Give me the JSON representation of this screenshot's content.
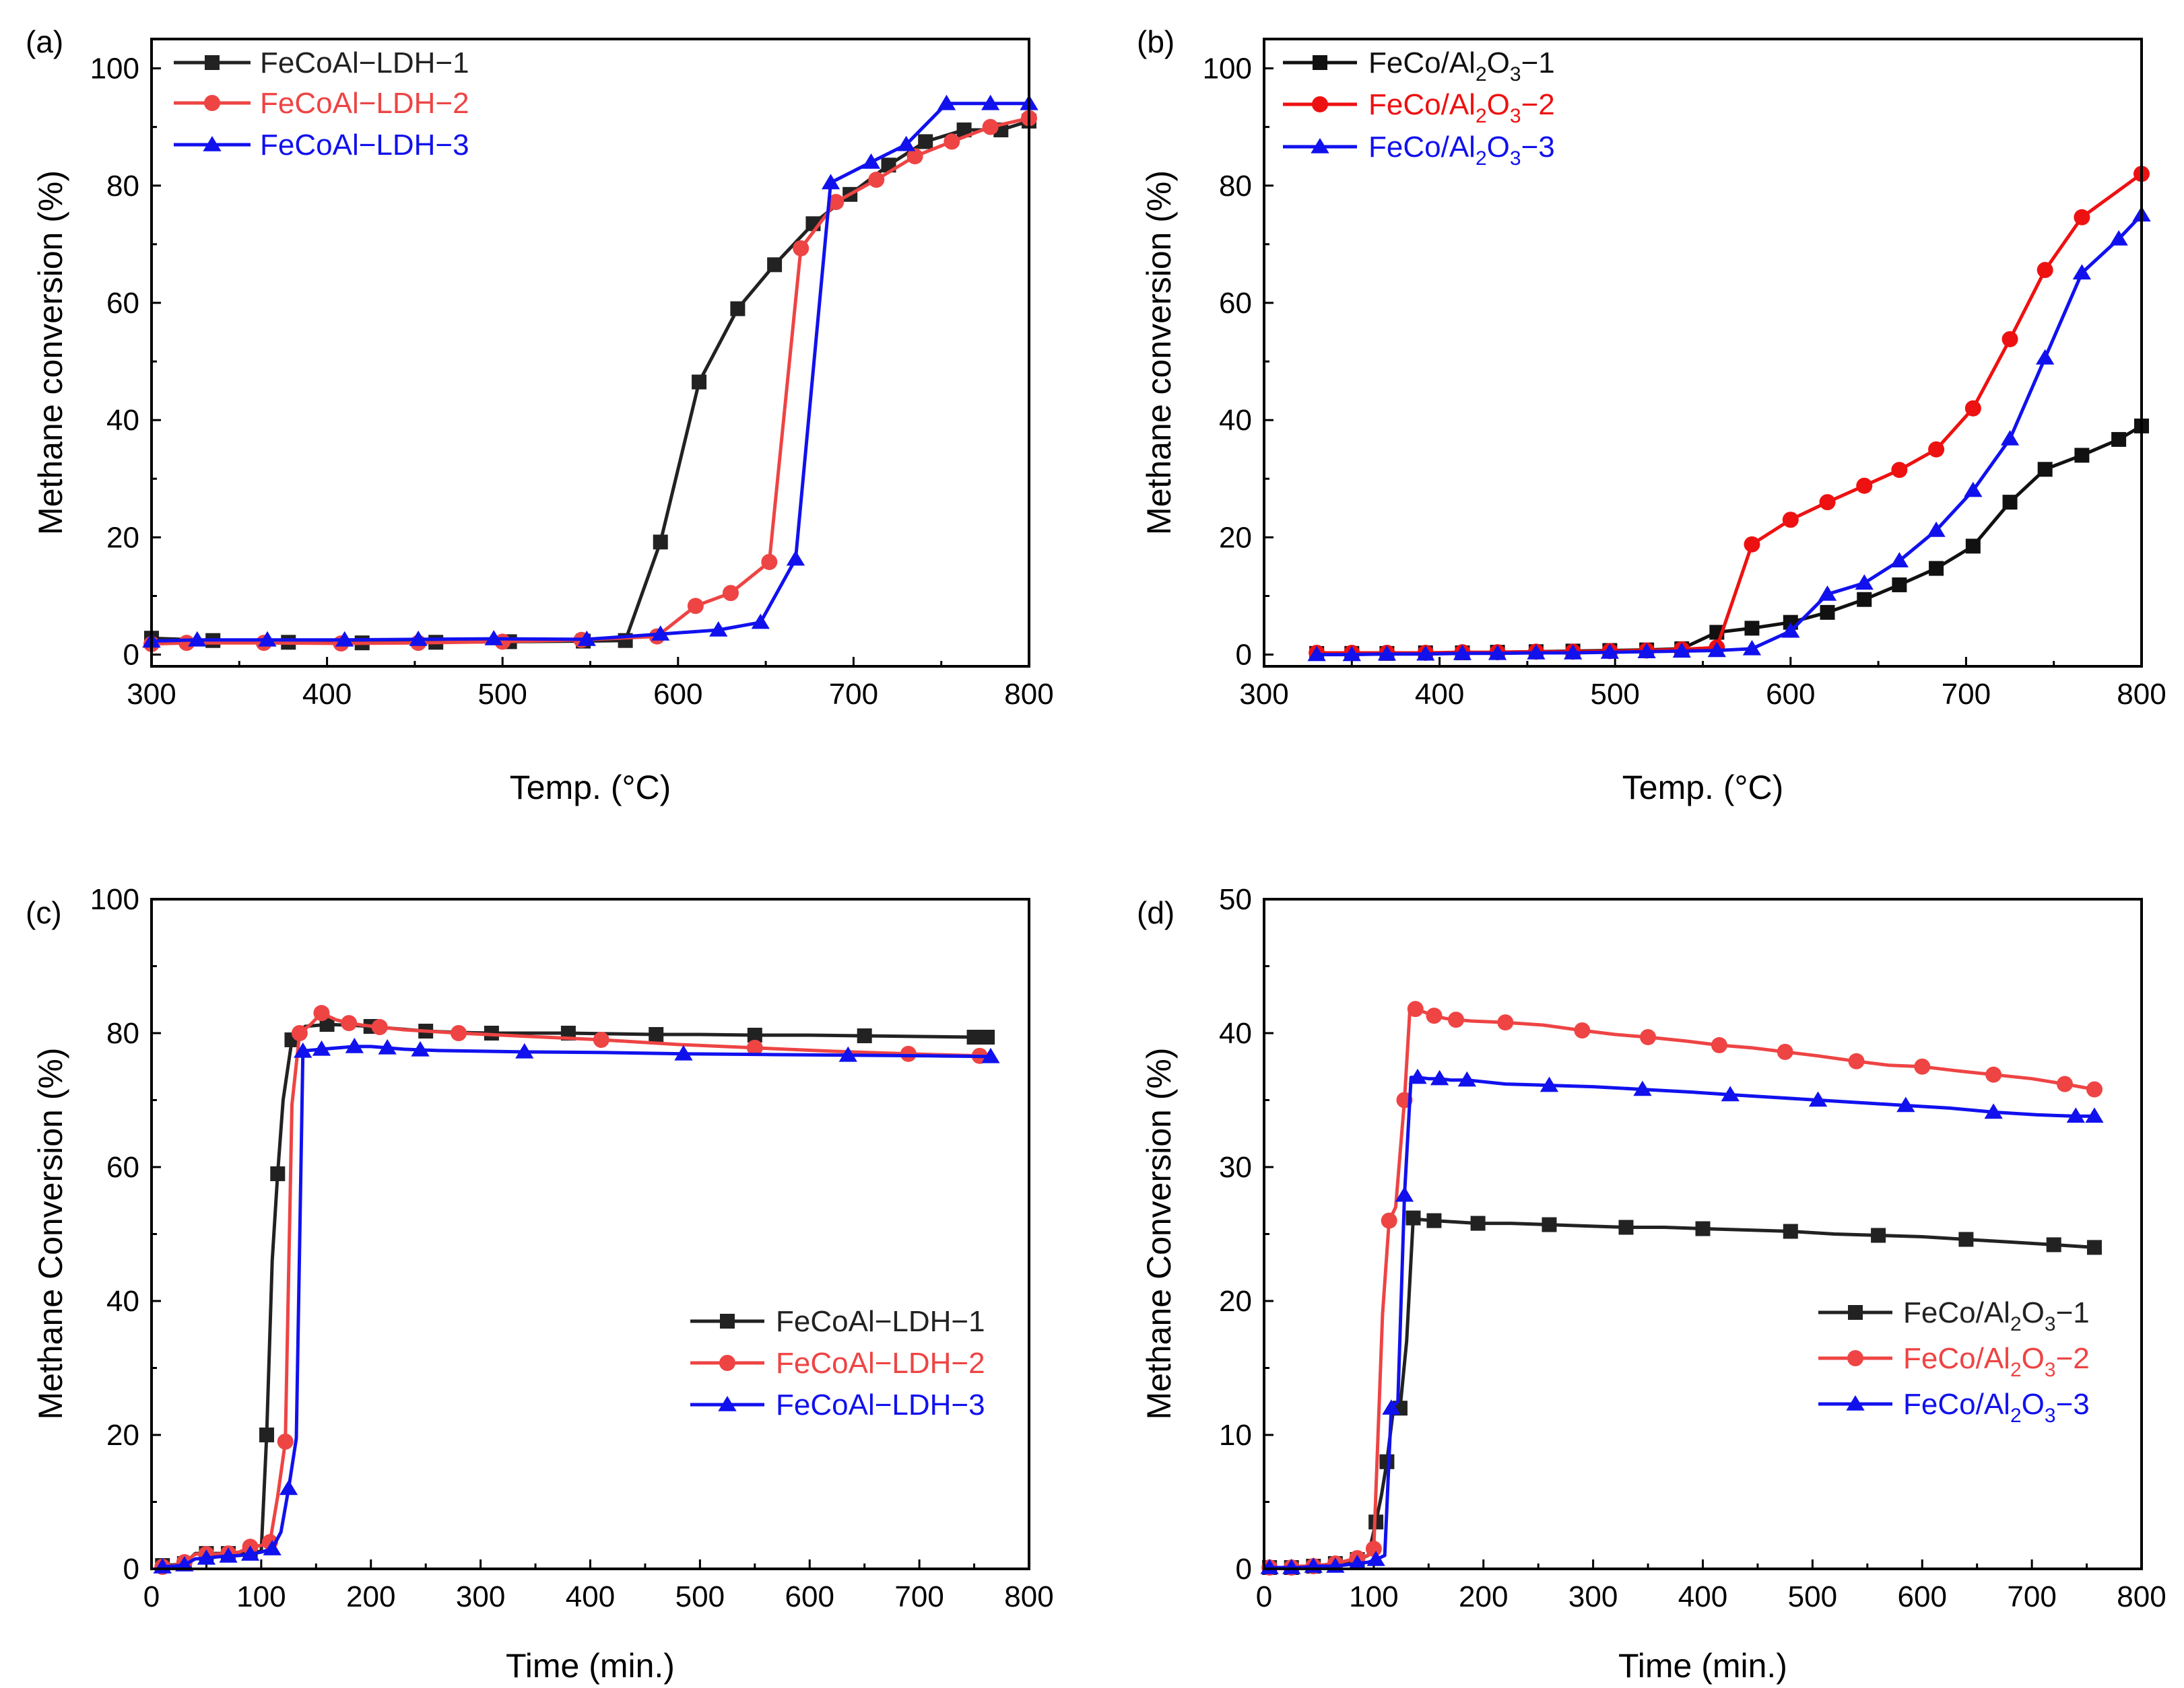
{
  "figure": {
    "background": "#ffffff"
  },
  "chart_data": [
    {
      "panel": "(a)",
      "type": "line",
      "title": "",
      "xlabel": "Temp. (°C)",
      "ylabel": "Methane conversion (%)",
      "xlim": [
        300,
        800
      ],
      "ylim": [
        -2,
        105
      ],
      "xticks": [
        300,
        400,
        500,
        600,
        700,
        800
      ],
      "yticks": [
        0,
        20,
        40,
        60,
        80,
        100
      ],
      "legend_position": "top-left",
      "series": [
        {
          "name": "FeCoAl−LDH−1",
          "color": "#222222",
          "marker": "square",
          "x": [
            300,
            335,
            378,
            420,
            462,
            504,
            546,
            570,
            590,
            612,
            634,
            655,
            677,
            698,
            720,
            741,
            763,
            784,
            800
          ],
          "y": [
            2.8,
            2.4,
            2.1,
            2.0,
            2.1,
            2.2,
            2.3,
            2.4,
            19.2,
            46.5,
            59.0,
            66.5,
            73.5,
            78.5,
            83.5,
            87.5,
            89.5,
            89.5,
            91.0
          ]
        },
        {
          "name": "FeCoAl−LDH−2",
          "color": "#ee4444",
          "marker": "circle",
          "x": [
            300,
            320,
            364,
            408,
            452,
            500,
            545,
            588,
            610,
            630,
            652,
            670,
            690,
            713,
            735,
            756,
            778,
            800
          ],
          "y": [
            1.8,
            2.0,
            2.0,
            1.9,
            2.0,
            2.2,
            2.5,
            3.1,
            8.3,
            10.5,
            15.8,
            69.3,
            77.2,
            81.0,
            85.0,
            87.5,
            90.0,
            91.5
          ]
        },
        {
          "name": "FeCoAl−LDH−3",
          "color": "#1111ee",
          "marker": "triangle",
          "x": [
            300,
            326,
            366,
            410,
            452,
            495,
            548,
            590,
            623,
            647,
            667,
            687,
            710,
            730,
            753,
            778,
            800
          ],
          "y": [
            2.3,
            2.5,
            2.5,
            2.5,
            2.6,
            2.7,
            2.6,
            3.5,
            4.2,
            5.5,
            16.3,
            80.5,
            84.0,
            87.0,
            94.0,
            94.0,
            94.0
          ]
        }
      ]
    },
    {
      "panel": "(b)",
      "type": "line",
      "title": "",
      "xlabel": "Temp. (°C)",
      "ylabel": "Methane conversion (%)",
      "xlim": [
        300,
        800
      ],
      "ylim": [
        -2,
        105
      ],
      "xticks": [
        300,
        400,
        500,
        600,
        700,
        800
      ],
      "yticks": [
        0,
        20,
        40,
        60,
        80,
        100
      ],
      "legend_position": "top-left",
      "series": [
        {
          "name": "FeCo/Al2O3−1",
          "name_parts": [
            "FeCo/Al",
            "2",
            "O",
            "3",
            "−1"
          ],
          "color": "#111111",
          "marker": "square",
          "x": [
            330,
            350,
            370,
            392,
            413,
            433,
            455,
            476,
            497,
            518,
            538,
            558,
            578,
            600,
            621,
            642,
            662,
            683,
            704,
            725,
            745,
            766,
            787,
            800
          ],
          "y": [
            0.2,
            0.2,
            0.2,
            0.3,
            0.3,
            0.4,
            0.5,
            0.6,
            0.7,
            0.8,
            1.0,
            3.8,
            4.5,
            5.5,
            7.2,
            9.4,
            11.9,
            14.7,
            18.5,
            26.0,
            31.6,
            34.0,
            36.7,
            39.0
          ]
        },
        {
          "name": "FeCo/Al2O3−2",
          "name_parts": [
            "FeCo/Al",
            "2",
            "O",
            "3",
            "−2"
          ],
          "color": "#ee1111",
          "marker": "circle",
          "x": [
            330,
            350,
            370,
            392,
            413,
            433,
            455,
            476,
            497,
            518,
            538,
            558,
            578,
            600,
            621,
            642,
            662,
            683,
            704,
            725,
            745,
            766,
            800
          ],
          "y": [
            0.3,
            0.3,
            0.3,
            0.3,
            0.4,
            0.4,
            0.5,
            0.5,
            0.6,
            0.7,
            0.9,
            1.2,
            18.8,
            23.0,
            26.0,
            28.8,
            31.5,
            35.0,
            42.0,
            53.8,
            65.6,
            74.6,
            82.0
          ]
        },
        {
          "name": "FeCo/Al2O3−3",
          "name_parts": [
            "FeCo/Al",
            "2",
            "O",
            "3",
            "−3"
          ],
          "color": "#1111ee",
          "marker": "triangle",
          "x": [
            330,
            350,
            370,
            392,
            413,
            433,
            455,
            476,
            497,
            518,
            538,
            558,
            578,
            600,
            621,
            642,
            662,
            683,
            704,
            725,
            745,
            766,
            787,
            800
          ],
          "y": [
            0.0,
            0.0,
            0.1,
            0.1,
            0.2,
            0.2,
            0.3,
            0.3,
            0.4,
            0.5,
            0.6,
            0.7,
            1.0,
            4.0,
            10.3,
            12.2,
            16.0,
            21.2,
            28.0,
            36.8,
            50.6,
            65.1,
            70.9,
            75.0
          ]
        }
      ]
    },
    {
      "panel": "(c)",
      "type": "line",
      "title": "",
      "xlabel": "Time (min.)",
      "ylabel": "Methane Conversion (%)",
      "xlim": [
        0,
        800
      ],
      "ylim": [
        0,
        100
      ],
      "xticks": [
        0,
        100,
        200,
        300,
        400,
        500,
        600,
        700,
        800
      ],
      "yticks": [
        0,
        20,
        40,
        60,
        80,
        100
      ],
      "legend_position": "center-right",
      "series": [
        {
          "name": "FeCoAl−LDH−1",
          "color": "#222222",
          "marker": "square",
          "x": [
            10,
            20,
            30,
            40,
            50,
            60,
            70,
            80,
            90,
            100,
            105,
            110,
            115,
            120,
            128,
            140,
            160,
            180,
            200,
            220,
            250,
            280,
            310,
            340,
            380,
            420,
            460,
            500,
            550,
            600,
            650,
            700,
            750,
            762
          ],
          "y": [
            0.5,
            0.6,
            0.8,
            2.3,
            2.3,
            2.3,
            2.3,
            2.5,
            2.5,
            2.6,
            20.0,
            46.0,
            59.0,
            70.0,
            79.0,
            81.0,
            81.3,
            81.2,
            81.0,
            80.7,
            80.3,
            80.1,
            80.0,
            80.0,
            80.0,
            79.9,
            79.8,
            79.8,
            79.7,
            79.7,
            79.6,
            79.5,
            79.4,
            79.4
          ]
        },
        {
          "name": "FeCoAl−LDH−2",
          "color": "#ee4444",
          "marker": "circle",
          "x": [
            10,
            20,
            30,
            40,
            50,
            60,
            70,
            80,
            90,
            100,
            108,
            115,
            122,
            128,
            135,
            145,
            155,
            168,
            180,
            192,
            208,
            230,
            280,
            345,
            410,
            480,
            550,
            620,
            690,
            755
          ],
          "y": [
            0.3,
            0.5,
            1.0,
            2.2,
            2.2,
            2.2,
            2.3,
            2.5,
            3.3,
            3.5,
            4.0,
            10.8,
            19.0,
            69.3,
            80.0,
            81.3,
            83.0,
            82.0,
            81.5,
            81.2,
            80.9,
            80.5,
            80.0,
            79.5,
            79.0,
            78.3,
            77.8,
            77.3,
            76.9,
            76.6
          ]
        },
        {
          "name": "FeCoAl−LDH−3",
          "color": "#1111ee",
          "marker": "triangle",
          "x": [
            10,
            20,
            30,
            40,
            50,
            60,
            70,
            80,
            90,
            100,
            110,
            118,
            125,
            132,
            138,
            142,
            155,
            170,
            185,
            200,
            215,
            230,
            245,
            262,
            340,
            415,
            485,
            560,
            635,
            710,
            765
          ],
          "y": [
            0.3,
            0.4,
            0.6,
            1.5,
            1.6,
            1.8,
            1.9,
            2.0,
            2.2,
            2.5,
            3.0,
            5.5,
            12.0,
            19.5,
            77.3,
            77.4,
            77.6,
            77.8,
            78.0,
            78.0,
            77.8,
            77.6,
            77.5,
            77.4,
            77.2,
            77.1,
            76.9,
            76.8,
            76.7,
            76.6,
            76.5
          ]
        }
      ]
    },
    {
      "panel": "(d)",
      "type": "line",
      "title": "",
      "xlabel": "Time (min.)",
      "ylabel": "Methane Conversion (%)",
      "xlim": [
        0,
        800
      ],
      "ylim": [
        0,
        50
      ],
      "xticks": [
        0,
        100,
        200,
        300,
        400,
        500,
        600,
        700,
        800
      ],
      "yticks": [
        0,
        10,
        20,
        30,
        40,
        50
      ],
      "legend_position": "center-right",
      "series": [
        {
          "name": "FeCo/Al2O3−1",
          "name_parts": [
            "FeCo/Al",
            "2",
            "O",
            "3",
            "−1"
          ],
          "color": "#222222",
          "marker": "square",
          "x": [
            5,
            15,
            25,
            35,
            45,
            55,
            65,
            75,
            85,
            95,
            102,
            107,
            112,
            118,
            124,
            130,
            136,
            140,
            155,
            175,
            195,
            225,
            260,
            295,
            330,
            365,
            400,
            440,
            480,
            520,
            560,
            600,
            640,
            680,
            720,
            757
          ],
          "y": [
            0.1,
            0.1,
            0.1,
            0.2,
            0.2,
            0.3,
            0.4,
            0.5,
            0.7,
            1.0,
            3.5,
            5.5,
            8.0,
            12.0,
            12.0,
            17.0,
            26.2,
            26.1,
            26.0,
            25.9,
            25.8,
            25.8,
            25.7,
            25.6,
            25.5,
            25.5,
            25.4,
            25.3,
            25.2,
            25.0,
            24.9,
            24.8,
            24.6,
            24.4,
            24.2,
            24.0
          ]
        },
        {
          "name": "FeCo/Al2O3−2",
          "name_parts": [
            "FeCo/Al",
            "2",
            "O",
            "3",
            "−2"
          ],
          "color": "#ee4444",
          "marker": "circle",
          "x": [
            5,
            15,
            25,
            35,
            45,
            55,
            65,
            75,
            85,
            95,
            100,
            108,
            114,
            120,
            128,
            133,
            138,
            145,
            155,
            165,
            175,
            190,
            220,
            255,
            290,
            320,
            350,
            385,
            415,
            445,
            475,
            505,
            540,
            570,
            600,
            630,
            665,
            700,
            730,
            757
          ],
          "y": [
            0.1,
            0.1,
            0.1,
            0.2,
            0.2,
            0.3,
            0.4,
            0.6,
            0.8,
            1.0,
            1.5,
            19.0,
            26.0,
            27.0,
            35.0,
            41.8,
            41.8,
            41.6,
            41.3,
            41.1,
            41.0,
            40.9,
            40.8,
            40.6,
            40.2,
            39.9,
            39.7,
            39.4,
            39.1,
            38.9,
            38.6,
            38.3,
            37.9,
            37.6,
            37.5,
            37.2,
            36.9,
            36.6,
            36.2,
            35.8
          ]
        },
        {
          "name": "FeCo/Al2O3−3",
          "name_parts": [
            "FeCo/Al",
            "2",
            "O",
            "3",
            "−3"
          ],
          "color": "#1111ee",
          "marker": "triangle",
          "x": [
            5,
            15,
            25,
            35,
            45,
            55,
            65,
            75,
            85,
            95,
            102,
            110,
            116,
            122,
            128,
            134,
            140,
            150,
            160,
            170,
            185,
            220,
            260,
            300,
            345,
            390,
            425,
            465,
            505,
            545,
            585,
            625,
            665,
            705,
            740,
            757
          ],
          "y": [
            0.1,
            0.1,
            0.1,
            0.1,
            0.2,
            0.2,
            0.2,
            0.3,
            0.4,
            0.5,
            0.7,
            1.0,
            12.0,
            12.5,
            27.9,
            36.7,
            36.7,
            36.6,
            36.6,
            36.5,
            36.5,
            36.2,
            36.1,
            36.0,
            35.8,
            35.6,
            35.4,
            35.2,
            35.0,
            34.8,
            34.6,
            34.4,
            34.1,
            33.9,
            33.8,
            33.8
          ]
        }
      ]
    }
  ]
}
